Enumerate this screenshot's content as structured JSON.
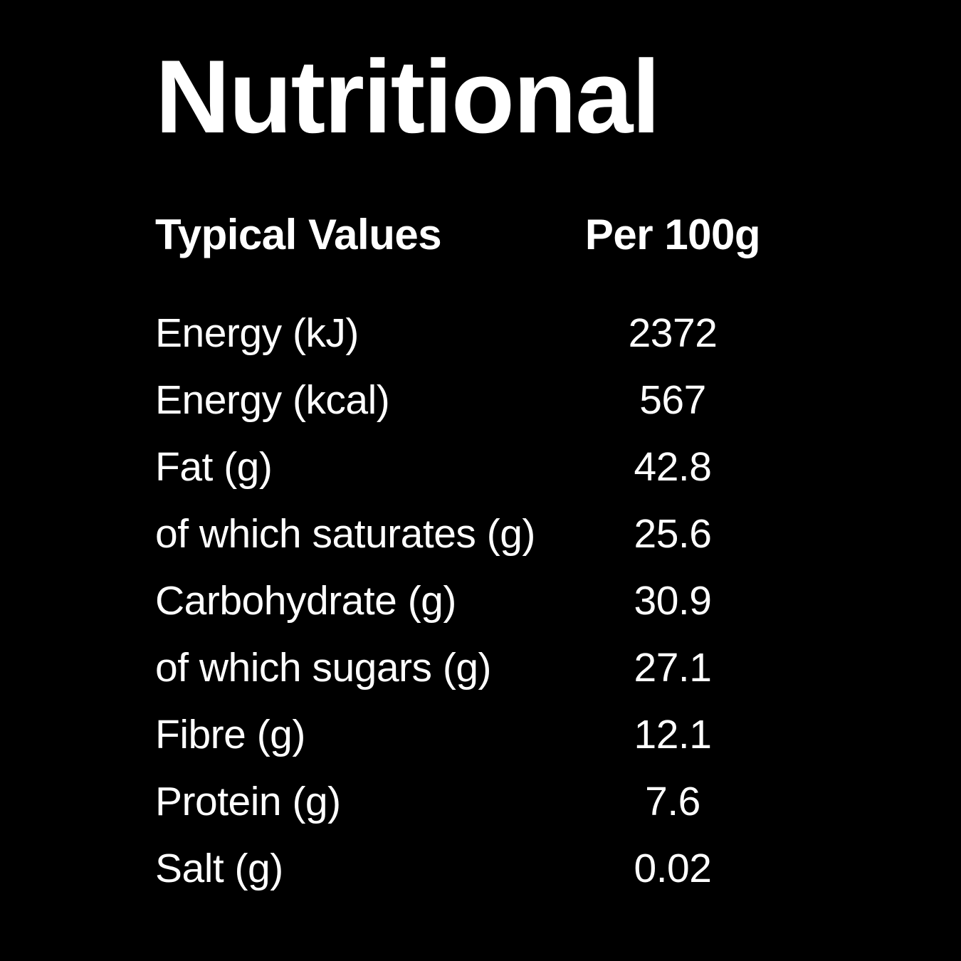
{
  "page": {
    "background_color": "#000000",
    "text_color": "#ffffff"
  },
  "title": "Nutritional",
  "table": {
    "headers": {
      "label": "Typical Values",
      "value": "Per 100g"
    },
    "rows": [
      {
        "label": "Energy (kJ)",
        "value": "2372"
      },
      {
        "label": "Energy (kcal)",
        "value": "567"
      },
      {
        "label": "Fat (g)",
        "value": "42.8"
      },
      {
        "label": "of which saturates (g)",
        "value": "25.6"
      },
      {
        "label": "Carbohydrate (g)",
        "value": "30.9"
      },
      {
        "label": "of which sugars (g)",
        "value": "27.1"
      },
      {
        "label": "Fibre (g)",
        "value": "12.1"
      },
      {
        "label": "Protein (g)",
        "value": "7.6"
      },
      {
        "label": "Salt (g)",
        "value": "0.02"
      }
    ]
  }
}
